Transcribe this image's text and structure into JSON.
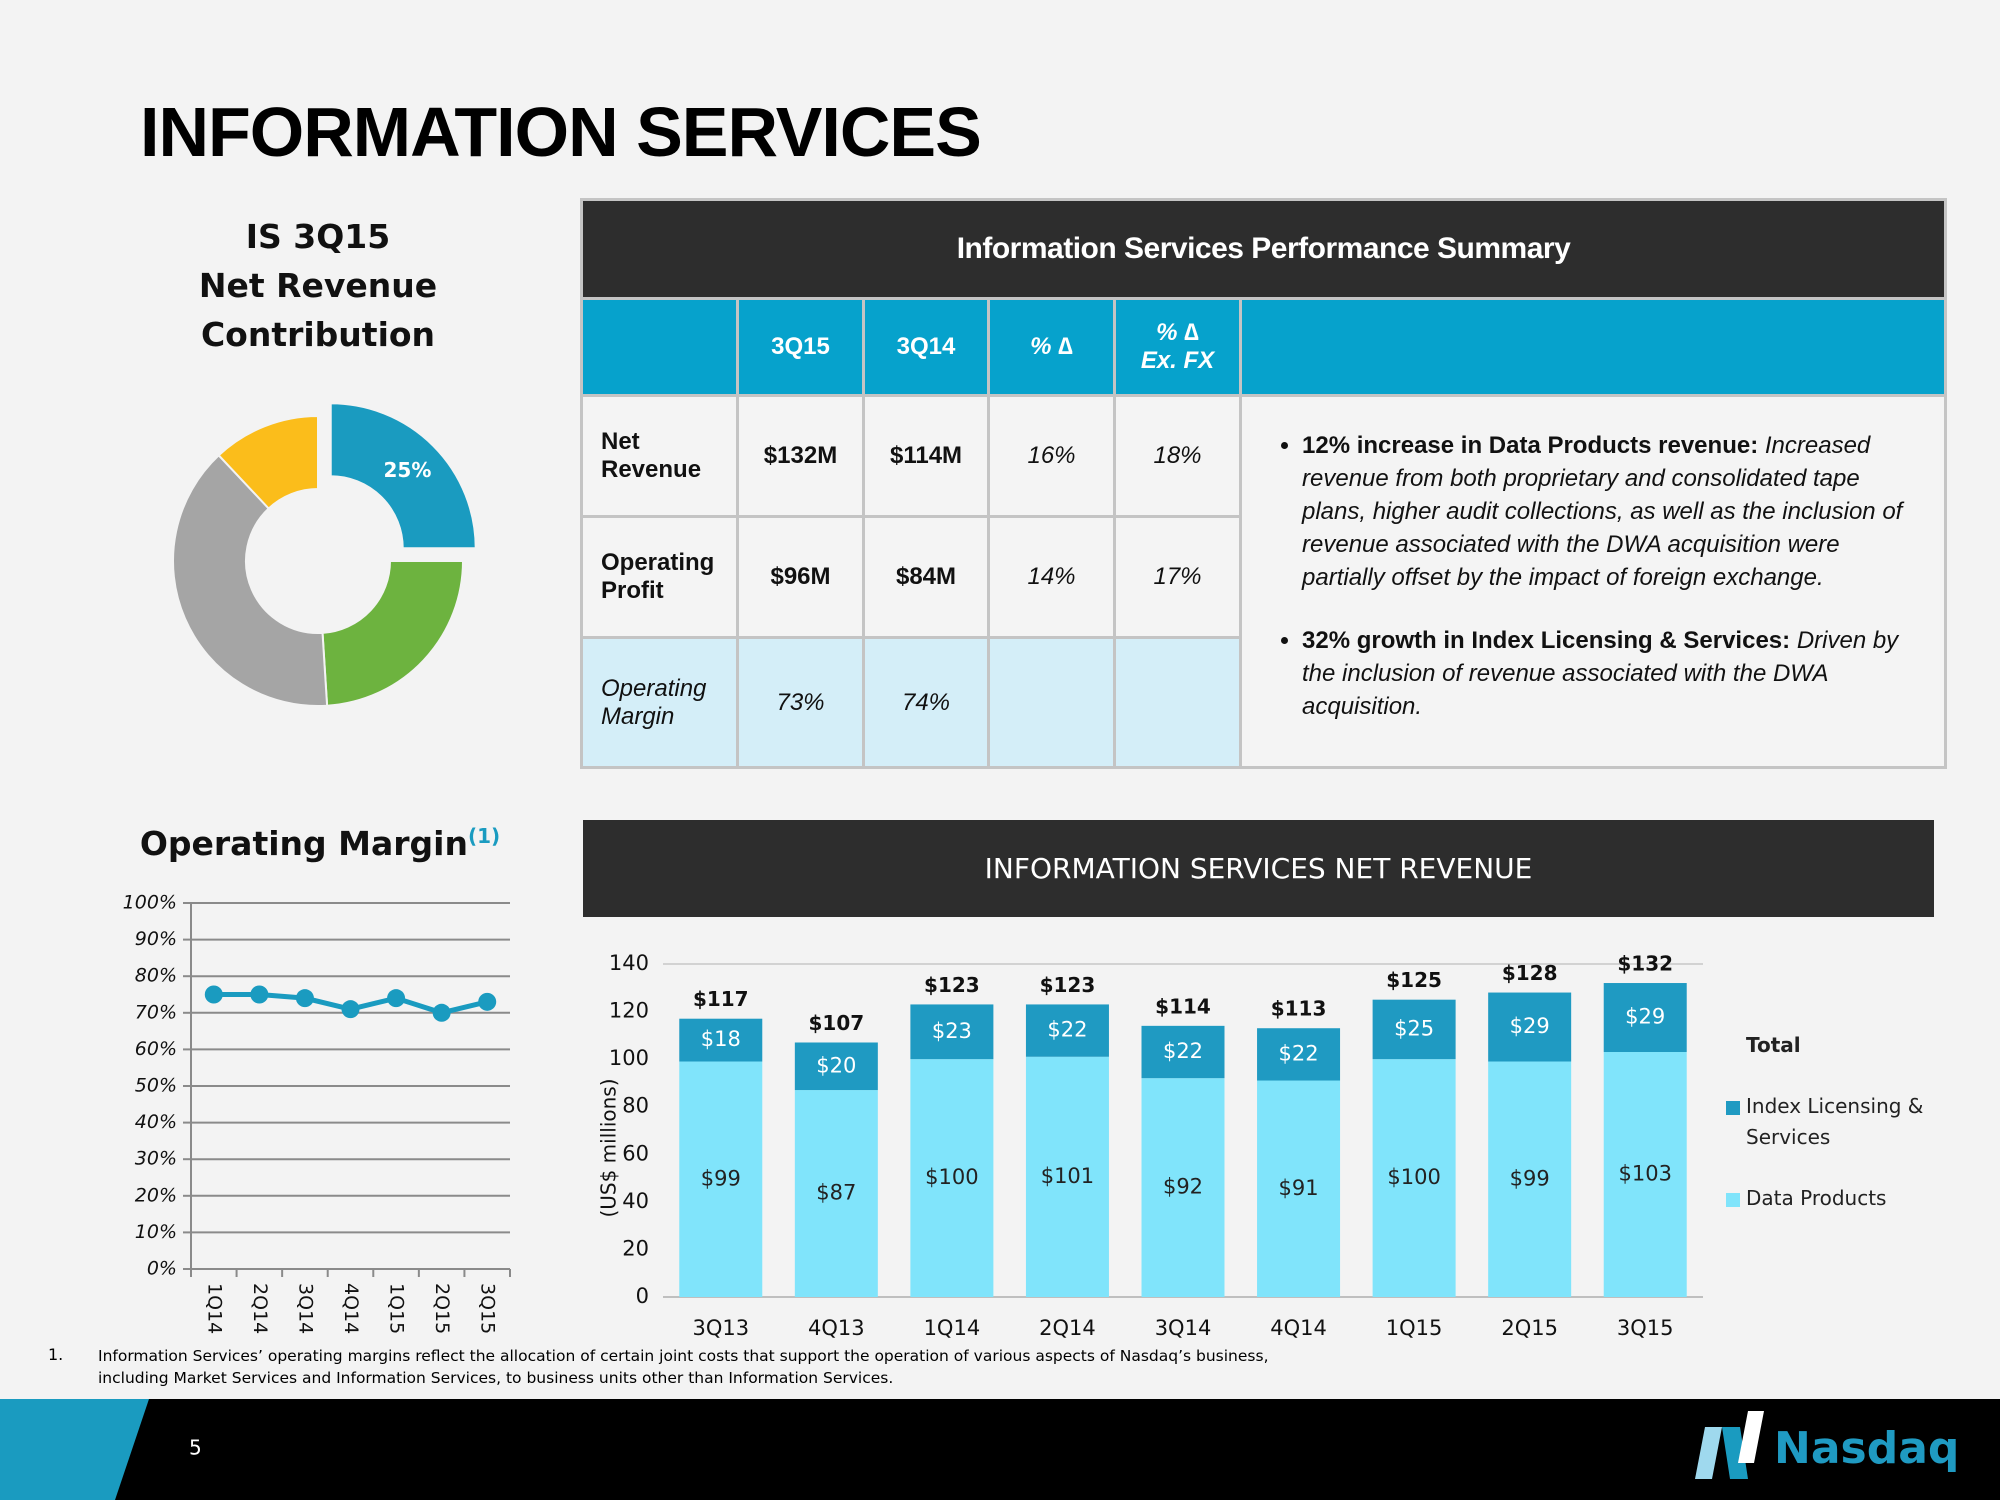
{
  "title": "INFORMATION SERVICES",
  "table": {
    "title": "Information Services Performance Summary",
    "header": [
      null,
      "3Q15",
      "3Q14",
      "% ∆",
      "% ∆\nEx. FX"
    ],
    "rows": [
      [
        "Net Revenue",
        "$132M",
        "$114M",
        "16%",
        "18%"
      ],
      [
        "Operating Profit",
        "$96M",
        "$84M",
        "14%",
        "17%"
      ],
      [
        "Operating Margin",
        "73%",
        "74%",
        null,
        null
      ]
    ],
    "notes": [
      {
        "lead": "12% increase in Data Products revenue:",
        "text": "Increased revenue from both proprietary and consolidated tape plans, higher audit collections, as well as the inclusion of revenue associated with the DWA acquisition were partially offset by the impact of foreign exchange."
      },
      {
        "lead": "32% growth in Index Licensing & Services:",
        "text": "Driven by the inclusion of revenue associated with the DWA acquisition."
      }
    ]
  },
  "chart_data": [
    {
      "type": "donut",
      "title": "IS 3Q15\nNet Revenue\nContribution",
      "values": [
        25,
        24,
        39,
        12
      ],
      "value_labels": [
        "25%",
        null,
        null,
        null
      ],
      "colors": [
        "#1a9bc0",
        "#6db33f",
        "#a5a5a5",
        "#fbbd1b"
      ]
    },
    {
      "type": "line",
      "title": "Operating Margin",
      "title_note": "(1)",
      "categories": [
        "1Q14",
        "2Q14",
        "3Q14",
        "4Q14",
        "1Q15",
        "2Q15",
        "3Q15"
      ],
      "series": [
        {
          "color": "#1a9bc0",
          "values": [
            75,
            75,
            74,
            71,
            74,
            70,
            73
          ]
        }
      ],
      "ylim": [
        0,
        100
      ],
      "yticks": [
        {
          "value": 0,
          "label": "0%"
        },
        {
          "value": 10,
          "label": "10%"
        },
        {
          "value": 20,
          "label": "20%"
        },
        {
          "value": 30,
          "label": "30%"
        },
        {
          "value": 40,
          "label": "40%"
        },
        {
          "value": 50,
          "label": "50%"
        },
        {
          "value": 60,
          "label": "60%"
        },
        {
          "value": 70,
          "label": "70%"
        },
        {
          "value": 80,
          "label": "80%"
        },
        {
          "value": 90,
          "label": "90%"
        },
        {
          "value": 100,
          "label": "100%"
        }
      ],
      "grid": true
    },
    {
      "type": "stacked_bar",
      "title": "INFORMATION SERVICES NET REVENUE",
      "y_label": "(US$ millions)",
      "categories": [
        "3Q13",
        "4Q13",
        "1Q14",
        "2Q14",
        "3Q14",
        "4Q14",
        "1Q15",
        "2Q15",
        "3Q15"
      ],
      "series": [
        {
          "name": "Data Products",
          "color": "#80e4fb",
          "values": [
            99,
            87,
            100,
            101,
            92,
            91,
            100,
            99,
            103
          ],
          "value_labels": [
            "$99",
            "$87",
            "$100",
            "$101",
            "$92",
            "$91",
            "$100",
            "$99",
            "$103"
          ]
        },
        {
          "name": "Index Licensing & Services",
          "color": "#1f9ac2",
          "values": [
            18,
            20,
            23,
            22,
            22,
            22,
            25,
            29,
            29
          ],
          "value_labels": [
            "$18",
            "$20",
            "$23",
            "$22",
            "$22",
            "$22",
            "$25",
            "$29",
            "$29"
          ]
        },
        {
          "name": "Total",
          "values": [
            117,
            107,
            123,
            123,
            114,
            113,
            125,
            128,
            132
          ],
          "value_labels": [
            "$117",
            "$107",
            "$123",
            "$123",
            "$114",
            "$113",
            "$125",
            "$128",
            "$132"
          ]
        }
      ],
      "ylim": [
        0,
        140
      ],
      "yticks": [
        0,
        20,
        40,
        60,
        80,
        100,
        120,
        140
      ],
      "legend": "right"
    }
  ],
  "footnote": {
    "number": "1.",
    "text": "Information Services’ operating margins reflect the allocation of certain joint costs that support the operation of various aspects of Nasdaq’s business, including Market Services and Information Services, to business units other than Information Services."
  },
  "page_number": "5",
  "logo": "Nasdaq"
}
